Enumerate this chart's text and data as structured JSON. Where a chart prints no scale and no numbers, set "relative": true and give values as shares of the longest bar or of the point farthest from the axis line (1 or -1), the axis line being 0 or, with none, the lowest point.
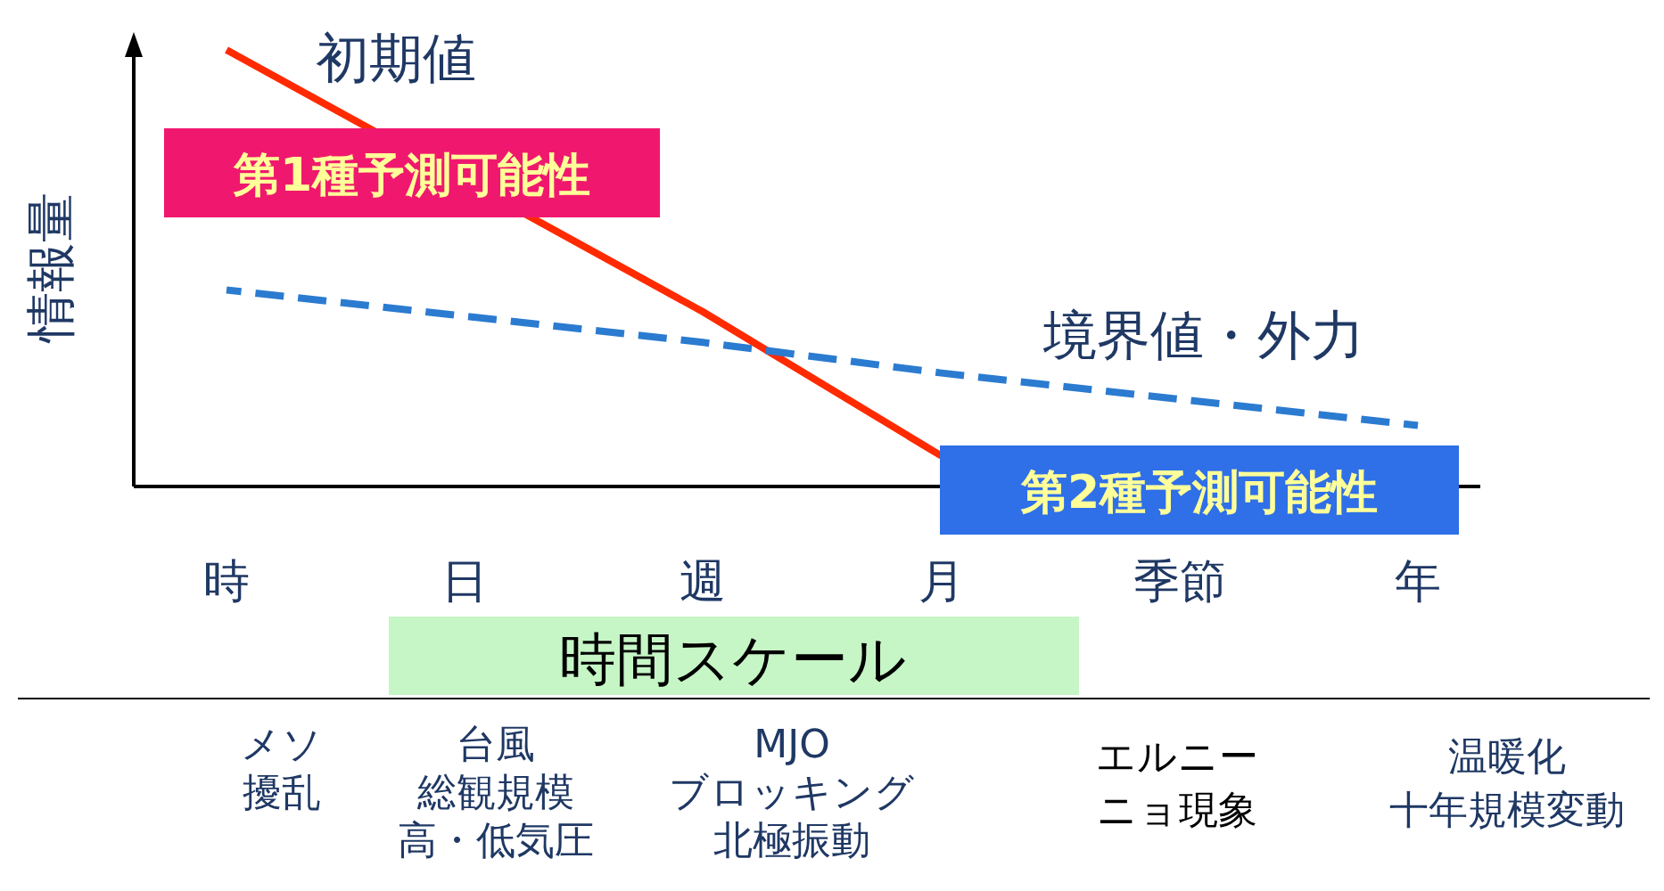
{
  "chart_data": {
    "type": "line",
    "relative": true,
    "ylabel": "情報量",
    "xlabel": "時間スケール",
    "categories": [
      "時",
      "日",
      "週",
      "月",
      "季節",
      "年"
    ],
    "series": [
      {
        "name": "初期値",
        "color": "#ff2a00",
        "line_style": "solid",
        "values": [
          1,
          null,
          0.4,
          0.07,
          null,
          null
        ]
      },
      {
        "name": "境界値・外力",
        "color": "#2b7bd0",
        "line_style": "dashed",
        "values": [
          0.45,
          0.39,
          0.33,
          0.26,
          0.2,
          0.14
        ]
      }
    ],
    "annotations": [
      "第1種予測可能性",
      "第2種予測可能性",
      "メソ",
      "擾乱",
      "台風",
      "総観規模",
      "高・低気圧",
      "MJO",
      "ブロッキング",
      "北極振動",
      "エルニー",
      "ニョ現象",
      "温暖化",
      "十年規模変動"
    ],
    "grid": false,
    "marker": "none"
  }
}
